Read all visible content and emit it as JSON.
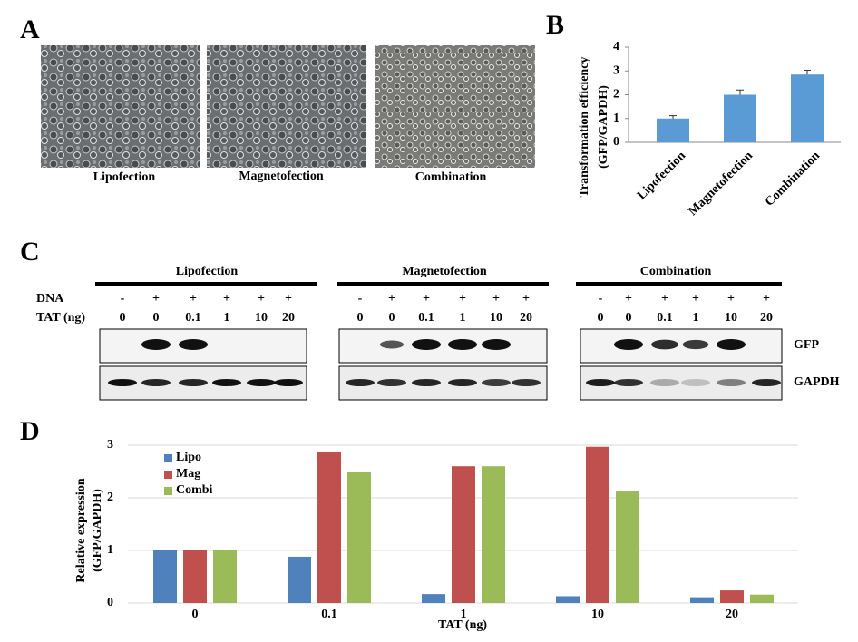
{
  "panel_labels": [
    "A",
    "B",
    "C",
    "D"
  ],
  "panel_a": {
    "captions": [
      "Lipofection",
      "Magnetofection",
      "Combination"
    ]
  },
  "panel_c": {
    "row_labels": [
      "DNA",
      "TAT (ng)"
    ],
    "blot_labels": [
      "GFP",
      "GAPDH"
    ],
    "groups": [
      {
        "title": "Lipofection",
        "dna": [
          "-",
          "+",
          "+",
          "+",
          "+",
          "+"
        ],
        "tat": [
          "0",
          "0",
          "0.1",
          "1",
          "10",
          "20"
        ]
      },
      {
        "title": "Magnetofection",
        "dna": [
          "-",
          "+",
          "+",
          "+",
          "+",
          "+"
        ],
        "tat": [
          "0",
          "0",
          "0.1",
          "1",
          "10",
          "20"
        ]
      },
      {
        "title": "Combination",
        "dna": [
          "-",
          "+",
          "+",
          "+",
          "+",
          "+"
        ],
        "tat": [
          "0",
          "0",
          "0.1",
          "1",
          "10",
          "20"
        ]
      }
    ]
  },
  "chart_data": [
    {
      "type": "bar",
      "ylabel": [
        "Transformation efficiency",
        "(GFP/GAPDH)"
      ],
      "categories": [
        "Lipofection",
        "Magnetofection",
        "Combination"
      ],
      "values": [
        1.0,
        2.0,
        2.85
      ],
      "errors": [
        0.12,
        0.2,
        0.18
      ],
      "color": "#5b9bd5",
      "ylim": [
        0,
        4
      ],
      "yticks": [
        0,
        1,
        2,
        3,
        4
      ],
      "grid": false
    },
    {
      "type": "grouped_bar",
      "ylabel": [
        "Relative expression",
        "(GFP/GAPDH)"
      ],
      "xlabel": "TAT (ng)",
      "categories": [
        "0",
        "0.1",
        "1",
        "10",
        "20"
      ],
      "series": [
        {
          "name": "Lipo",
          "color": "#4f81bd",
          "values": [
            1.0,
            0.88,
            0.17,
            0.13,
            0.11
          ]
        },
        {
          "name": "Mag",
          "color": "#c0504d",
          "values": [
            1.0,
            2.88,
            2.6,
            2.97,
            0.24
          ]
        },
        {
          "name": "Combi",
          "color": "#9bbb59",
          "values": [
            1.0,
            2.5,
            2.6,
            2.12,
            0.16
          ]
        }
      ],
      "ylim": [
        0,
        3
      ],
      "yticks": [
        0,
        1,
        2,
        3
      ],
      "grid": true,
      "legend": "top-left"
    }
  ]
}
